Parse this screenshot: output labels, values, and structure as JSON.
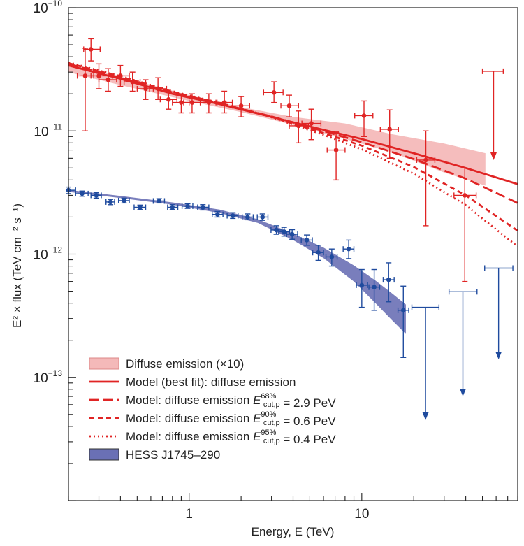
{
  "chart_data": {
    "type": "scatter",
    "title": "",
    "xlabel": "Energy, E (TeV)",
    "ylabel": "E² × flux (TeV cm⁻² s⁻¹)",
    "xscale": "log",
    "yscale": "log",
    "xlim": [
      0.2,
      80
    ],
    "ylim": [
      1e-14,
      1e-10
    ],
    "xticks": [
      {
        "value": 1,
        "label": "1"
      },
      {
        "value": 10,
        "label": "10"
      }
    ],
    "yticks": [
      {
        "value": 1e-10,
        "base": "10",
        "exp": "−10"
      },
      {
        "value": 1e-11,
        "base": "10",
        "exp": "−11"
      },
      {
        "value": 1e-12,
        "base": "10",
        "exp": "−12"
      },
      {
        "value": 1e-13,
        "base": "10",
        "exp": "−13"
      }
    ],
    "grid": false,
    "legend_position": "bottom-left",
    "legend": [
      {
        "kind": "band",
        "color": "#f4b9b9",
        "edge": "#d88",
        "parts": [
          {
            "t": "Diffuse emission (×10)"
          }
        ]
      },
      {
        "kind": "line",
        "dash": "solid",
        "color": "#e02424",
        "parts": [
          {
            "t": "Model (best fit): diffuse emission"
          }
        ]
      },
      {
        "kind": "line",
        "dash": "long",
        "color": "#e02424",
        "parts": [
          {
            "t": "Model: diffuse emission "
          },
          {
            "t": "E",
            "style": "italic"
          },
          {
            "sup": "68%",
            "sub": "cut,p"
          },
          {
            "t": " = 2.9 PeV"
          }
        ]
      },
      {
        "kind": "line",
        "dash": "short",
        "color": "#e02424",
        "parts": [
          {
            "t": "Model: diffuse emission "
          },
          {
            "t": "E",
            "style": "italic"
          },
          {
            "sup": "90%",
            "sub": "cut,p"
          },
          {
            "t": " = 0.6 PeV"
          }
        ]
      },
      {
        "kind": "line",
        "dash": "dot",
        "color": "#e02424",
        "parts": [
          {
            "t": "Model: diffuse emission "
          },
          {
            "t": "E",
            "style": "italic"
          },
          {
            "sup": "95%",
            "sub": "cut,p"
          },
          {
            "t": " = 0.4 PeV"
          }
        ]
      },
      {
        "kind": "band",
        "color": "#6a70b5",
        "edge": "#333",
        "parts": [
          {
            "t": "HESS J1745–290"
          }
        ]
      }
    ],
    "series": [
      {
        "name": "Diffuse emission (×10)",
        "color": "#e02424",
        "points": [
          {
            "x": 0.25,
            "y": 2.8e-11,
            "xlo": 0.225,
            "xhi": 0.28,
            "ylo": 1e-11,
            "yhi": 4.7e-11
          },
          {
            "x": 0.27,
            "y": 4.6e-11,
            "xlo": 0.245,
            "xhi": 0.305,
            "ylo": 3.7e-11,
            "yhi": 5.6e-11
          },
          {
            "x": 0.3,
            "y": 2.8e-11,
            "xlo": 0.27,
            "xhi": 0.34,
            "ylo": 2.2e-11,
            "yhi": 3.5e-11
          },
          {
            "x": 0.34,
            "y": 2.6e-11,
            "xlo": 0.3,
            "xhi": 0.38,
            "ylo": 2.1e-11,
            "yhi": 3.2e-11
          },
          {
            "x": 0.4,
            "y": 2.8e-11,
            "xlo": 0.36,
            "xhi": 0.45,
            "ylo": 2.3e-11,
            "yhi": 3.4e-11
          },
          {
            "x": 0.47,
            "y": 2.5e-11,
            "xlo": 0.42,
            "xhi": 0.52,
            "ylo": 2.1e-11,
            "yhi": 3e-11
          },
          {
            "x": 0.56,
            "y": 2.2e-11,
            "xlo": 0.5,
            "xhi": 0.62,
            "ylo": 1.8e-11,
            "yhi": 2.6e-11
          },
          {
            "x": 0.66,
            "y": 2.2e-11,
            "xlo": 0.59,
            "xhi": 0.74,
            "ylo": 1.8e-11,
            "yhi": 2.7e-11
          },
          {
            "x": 0.76,
            "y": 1.8e-11,
            "xlo": 0.68,
            "xhi": 0.85,
            "ylo": 1.5e-11,
            "yhi": 2.1e-11
          },
          {
            "x": 0.9,
            "y": 1.7e-11,
            "xlo": 0.8,
            "xhi": 1.0,
            "ylo": 1.4e-11,
            "yhi": 2e-11
          },
          {
            "x": 1.04,
            "y": 1.7e-11,
            "xlo": 0.93,
            "xhi": 1.16,
            "ylo": 1.4e-11,
            "yhi": 2e-11
          },
          {
            "x": 1.3,
            "y": 1.7e-11,
            "xlo": 1.16,
            "xhi": 1.45,
            "ylo": 1.4e-11,
            "yhi": 2e-11
          },
          {
            "x": 1.6,
            "y": 1.7e-11,
            "xlo": 1.43,
            "xhi": 1.78,
            "ylo": 1.4e-11,
            "yhi": 2.1e-11
          },
          {
            "x": 2.0,
            "y": 1.6e-11,
            "xlo": 1.78,
            "xhi": 2.24,
            "ylo": 1.3e-11,
            "yhi": 1.9e-11
          },
          {
            "x": 3.1,
            "y": 2.05e-11,
            "xlo": 2.7,
            "xhi": 3.5,
            "ylo": 1.7e-11,
            "yhi": 2.5e-11
          },
          {
            "x": 3.8,
            "y": 1.6e-11,
            "xlo": 3.4,
            "xhi": 4.3,
            "ylo": 1.3e-11,
            "yhi": 1.95e-11
          },
          {
            "x": 4.3,
            "y": 1.1e-11,
            "xlo": 3.8,
            "xhi": 4.9,
            "ylo": 8e-12,
            "yhi": 1.45e-11
          },
          {
            "x": 5.1,
            "y": 1.15e-11,
            "xlo": 4.5,
            "xhi": 5.8,
            "ylo": 8.5e-12,
            "yhi": 1.5e-11
          },
          {
            "x": 7.1,
            "y": 7e-12,
            "xlo": 6.3,
            "xhi": 8.0,
            "ylo": 4e-12,
            "yhi": 9.8e-12
          },
          {
            "x": 10.3,
            "y": 1.33e-11,
            "xlo": 9.1,
            "xhi": 11.6,
            "ylo": 9e-12,
            "yhi": 1.75e-11
          },
          {
            "x": 14.5,
            "y": 1.03e-11,
            "xlo": 12.8,
            "xhi": 16.3,
            "ylo": 6e-12,
            "yhi": 1.48e-11
          },
          {
            "x": 23.5,
            "y": 5.8e-12,
            "xlo": 20.8,
            "xhi": 26.5,
            "ylo": 1.7e-12,
            "yhi": 1e-11
          },
          {
            "x": 39.5,
            "y": 3e-12,
            "xlo": 34.2,
            "xhi": 46.0,
            "ylo": 6e-13,
            "yhi": 5e-12
          },
          {
            "x": 58,
            "y": 3.05e-11,
            "xlo": 50,
            "xhi": 66,
            "ylo": 5.8e-12,
            "yhi": 3.05e-11,
            "upper_limit": true
          }
        ]
      },
      {
        "name": "HESS J1745–290",
        "color": "#1f4b9e",
        "points": [
          {
            "x": 0.2,
            "y": 3.3e-12,
            "xlo": 0.2,
            "xhi": 0.22,
            "ylo": 3.1e-12,
            "yhi": 3.5e-12
          },
          {
            "x": 0.24,
            "y": 3.1e-12,
            "xlo": 0.22,
            "xhi": 0.26,
            "ylo": 2.95e-12,
            "yhi": 3.25e-12
          },
          {
            "x": 0.29,
            "y": 3e-12,
            "xlo": 0.27,
            "xhi": 0.31,
            "ylo": 2.85e-12,
            "yhi": 3.15e-12
          },
          {
            "x": 0.35,
            "y": 2.65e-12,
            "xlo": 0.33,
            "xhi": 0.37,
            "ylo": 2.52e-12,
            "yhi": 2.78e-12
          },
          {
            "x": 0.42,
            "y": 2.72e-12,
            "xlo": 0.39,
            "xhi": 0.45,
            "ylo": 2.6e-12,
            "yhi": 2.85e-12
          },
          {
            "x": 0.52,
            "y": 2.4e-12,
            "xlo": 0.48,
            "xhi": 0.56,
            "ylo": 2.3e-12,
            "yhi": 2.5e-12
          },
          {
            "x": 0.67,
            "y": 2.7e-12,
            "xlo": 0.62,
            "xhi": 0.72,
            "ylo": 2.6e-12,
            "yhi": 2.82e-12
          },
          {
            "x": 0.8,
            "y": 2.4e-12,
            "xlo": 0.75,
            "xhi": 0.86,
            "ylo": 2.3e-12,
            "yhi": 2.52e-12
          },
          {
            "x": 0.98,
            "y": 2.45e-12,
            "xlo": 0.91,
            "xhi": 1.05,
            "ylo": 2.35e-12,
            "yhi": 2.56e-12
          },
          {
            "x": 1.2,
            "y": 2.4e-12,
            "xlo": 1.12,
            "xhi": 1.3,
            "ylo": 2.28e-12,
            "yhi": 2.52e-12
          },
          {
            "x": 1.46,
            "y": 2.1e-12,
            "xlo": 1.36,
            "xhi": 1.57,
            "ylo": 2e-12,
            "yhi": 2.22e-12
          },
          {
            "x": 1.79,
            "y": 2.05e-12,
            "xlo": 1.66,
            "xhi": 1.92,
            "ylo": 1.95e-12,
            "yhi": 2.17e-12
          },
          {
            "x": 2.18,
            "y": 2e-12,
            "xlo": 2.03,
            "xhi": 2.35,
            "ylo": 1.9e-12,
            "yhi": 2.12e-12
          },
          {
            "x": 2.66,
            "y": 2e-12,
            "xlo": 2.48,
            "xhi": 2.86,
            "ylo": 1.88e-12,
            "yhi": 2.12e-12
          },
          {
            "x": 3.2,
            "y": 1.57e-12,
            "xlo": 2.98,
            "xhi": 3.45,
            "ylo": 1.45e-12,
            "yhi": 1.7e-12
          },
          {
            "x": 3.55,
            "y": 1.52e-12,
            "xlo": 3.3,
            "xhi": 3.82,
            "ylo": 1.4e-12,
            "yhi": 1.65e-12
          },
          {
            "x": 3.95,
            "y": 1.45e-12,
            "xlo": 3.67,
            "xhi": 4.25,
            "ylo": 1.32e-12,
            "yhi": 1.58e-12
          },
          {
            "x": 4.8,
            "y": 1.3e-12,
            "xlo": 4.46,
            "xhi": 5.17,
            "ylo": 1.18e-12,
            "yhi": 1.43e-12
          },
          {
            "x": 5.6,
            "y": 1.03e-12,
            "xlo": 5.2,
            "xhi": 6.0,
            "ylo": 8.9e-13,
            "yhi": 1.18e-12
          },
          {
            "x": 6.7,
            "y": 9.5e-13,
            "xlo": 6.2,
            "xhi": 7.2,
            "ylo": 8e-13,
            "yhi": 1.1e-12
          },
          {
            "x": 8.4,
            "y": 1.1e-12,
            "xlo": 7.8,
            "xhi": 9.0,
            "ylo": 9.2e-13,
            "yhi": 1.3e-12
          },
          {
            "x": 10.0,
            "y": 5.6e-13,
            "xlo": 9.3,
            "xhi": 10.8,
            "ylo": 3.7e-13,
            "yhi": 7.5e-13
          },
          {
            "x": 11.8,
            "y": 5.4e-13,
            "xlo": 11.0,
            "xhi": 12.7,
            "ylo": 3.5e-13,
            "yhi": 7.5e-13
          },
          {
            "x": 14.3,
            "y": 6.2e-13,
            "xlo": 13.3,
            "xhi": 15.4,
            "ylo": 4.1e-13,
            "yhi": 8.5e-13
          },
          {
            "x": 17.4,
            "y": 3.5e-13,
            "xlo": 16.2,
            "xhi": 18.7,
            "ylo": 1.45e-13,
            "yhi": 5.5e-13
          },
          {
            "x": 23.4,
            "y": 3.7e-13,
            "xlo": 19.5,
            "xhi": 28.0,
            "ylo": 4.5e-14,
            "yhi": 3.7e-13,
            "upper_limit": true
          },
          {
            "x": 38.5,
            "y": 4.95e-13,
            "xlo": 32.0,
            "xhi": 46.5,
            "ylo": 7e-14,
            "yhi": 4.95e-13,
            "upper_limit": true
          },
          {
            "x": 62,
            "y": 7.7e-13,
            "xlo": 51.5,
            "xhi": 75.0,
            "ylo": 1.4e-13,
            "yhi": 7.7e-13,
            "upper_limit": true
          }
        ]
      }
    ],
    "bands": [
      {
        "name": "Diffuse emission (×10)",
        "color": "#f4b6b6",
        "x": [
          0.2,
          0.4,
          1.0,
          2.0,
          4.0,
          8.0,
          15.0,
          30.0,
          52.0
        ],
        "ylo": [
          3e-11,
          2.35e-11,
          1.75e-11,
          1.42e-11,
          1.12e-11,
          8.6e-12,
          6.7e-12,
          4.6e-12,
          3.6e-12
        ],
        "yhi": [
          3.5e-11,
          2.75e-11,
          1.95e-11,
          1.56e-11,
          1.3e-11,
          1.15e-11,
          9.4e-12,
          7.9e-12,
          6.6e-12
        ]
      },
      {
        "name": "HESS J1745–290",
        "color": "#6a70b5",
        "x": [
          0.2,
          0.4,
          0.8,
          1.5,
          2.5,
          4.0,
          6.0,
          9.0,
          12.0,
          15.0,
          18.0
        ],
        "ylo": [
          3.2e-12,
          2.85e-12,
          2.52e-12,
          2.16e-12,
          1.79e-12,
          1.3e-12,
          9.3e-13,
          6e-13,
          4e-13,
          2.9e-13,
          2.25e-13
        ],
        "yhi": [
          3.32e-12,
          2.97e-12,
          2.63e-12,
          2.3e-12,
          1.92e-12,
          1.47e-12,
          1.13e-12,
          8.1e-13,
          6.1e-13,
          4.8e-13,
          3.9e-13
        ]
      }
    ],
    "model_lines": [
      {
        "name": "Model (best fit): diffuse emission",
        "dash": "solid",
        "color": "#e02424",
        "x": [
          0.2,
          0.4,
          0.8,
          1.5,
          3.0,
          6.0,
          10.0,
          20.0,
          40.0,
          80.0
        ],
        "y": [
          3.4e-11,
          2.65e-11,
          2e-11,
          1.65e-11,
          1.3e-11,
          1.02e-11,
          8.6e-12,
          6.6e-12,
          5e-12,
          3.7e-12
        ]
      },
      {
        "name": "Model: diffuse emission E68%cut,p = 2.9 PeV",
        "dash": "long",
        "color": "#e02424",
        "x": [
          0.2,
          0.4,
          0.8,
          1.5,
          3.0,
          6.0,
          10.0,
          20.0,
          40.0,
          80.0
        ],
        "y": [
          3.5e-11,
          2.7e-11,
          2.05e-11,
          1.67e-11,
          1.31e-11,
          1e-11,
          8.1e-12,
          5.9e-12,
          4.1e-12,
          2.6e-12
        ]
      },
      {
        "name": "Model: diffuse emission E90%cut,p = 0.6 PeV",
        "dash": "short",
        "color": "#e02424",
        "x": [
          0.2,
          0.4,
          0.8,
          1.5,
          3.0,
          6.0,
          10.0,
          20.0,
          40.0,
          80.0
        ],
        "y": [
          3.55e-11,
          2.75e-11,
          2.08e-11,
          1.68e-11,
          1.3e-11,
          9.6e-12,
          7.6e-12,
          5.1e-12,
          3e-12,
          1.55e-12
        ]
      },
      {
        "name": "Model: diffuse emission E95%cut,p = 0.4 PeV",
        "dash": "dot",
        "color": "#e02424",
        "x": [
          0.2,
          0.4,
          0.8,
          1.5,
          3.0,
          6.0,
          10.0,
          20.0,
          40.0,
          80.0
        ],
        "y": [
          3.6e-11,
          2.78e-11,
          2.1e-11,
          1.69e-11,
          1.29e-11,
          9.3e-12,
          7.1e-12,
          4.5e-12,
          2.5e-12,
          1.15e-12
        ]
      }
    ]
  }
}
